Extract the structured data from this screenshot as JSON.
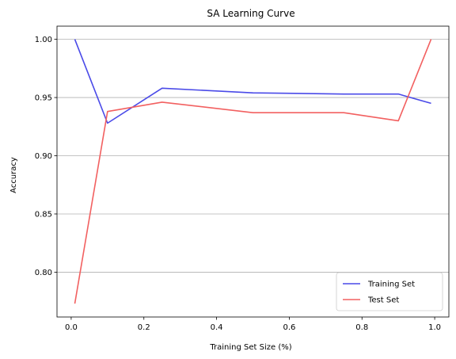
{
  "chart_data": {
    "type": "line",
    "title": "SA Learning Curve",
    "xlabel": "Training Set Size (%)",
    "ylabel": "Accuracy",
    "xlim": [
      -0.039,
      1.039
    ],
    "ylim": [
      0.7615,
      1.0113
    ],
    "xticks": [
      0.0,
      0.2,
      0.4,
      0.6,
      0.8,
      1.0
    ],
    "xtick_labels": [
      "0.0",
      "0.2",
      "0.4",
      "0.6",
      "0.8",
      "1.0"
    ],
    "yticks": [
      0.8,
      0.85,
      0.9,
      0.95,
      1.0
    ],
    "ytick_labels": [
      "0.80",
      "0.85",
      "0.90",
      "0.95",
      "1.00"
    ],
    "grid": "horizontal",
    "legend_position": "lower-right",
    "series": [
      {
        "name": "Training Set",
        "color": "#4a4ae8",
        "x": [
          0.01,
          0.1,
          0.25,
          0.5,
          0.75,
          0.9,
          0.99
        ],
        "y": [
          1.0,
          0.928,
          0.958,
          0.954,
          0.953,
          0.953,
          0.945
        ]
      },
      {
        "name": "Test Set",
        "color": "#f26060",
        "x": [
          0.01,
          0.1,
          0.25,
          0.5,
          0.75,
          0.9,
          0.99
        ],
        "y": [
          0.773,
          0.938,
          0.946,
          0.937,
          0.937,
          0.93,
          1.0
        ]
      }
    ]
  }
}
